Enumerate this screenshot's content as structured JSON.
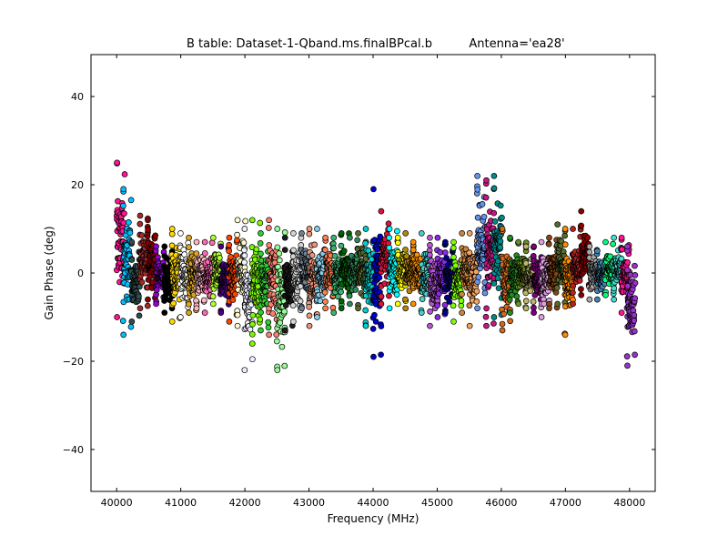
{
  "chart_data": {
    "type": "scatter",
    "title": "B table: Dataset-1-Qband.ms.finalBPcal.b",
    "title_annotation": "Antenna='ea28'",
    "xlabel": "Frequency (MHz)",
    "ylabel": "Gain Phase (deg)",
    "xlim": [
      39600,
      48400
    ],
    "ylim": [
      -49.5,
      49.5
    ],
    "x_ticks": [
      40000,
      41000,
      42000,
      43000,
      44000,
      45000,
      46000,
      47000,
      48000
    ],
    "x_tick_labels": [
      "40000",
      "41000",
      "42000",
      "43000",
      "44000",
      "45000",
      "46000",
      "47000",
      "48000"
    ],
    "y_ticks": [
      -40,
      -20,
      0,
      20,
      40
    ],
    "y_tick_labels": [
      "−40",
      "−20",
      "0",
      "20",
      "40"
    ],
    "grid": false,
    "legend": "none",
    "marker": "circle, black edge",
    "spw_bandwidth_mhz": 128,
    "series": [
      {
        "color": "#ff1493",
        "start": 40000,
        "min": -10,
        "max": 25
      },
      {
        "color": "#00bfff",
        "start": 40100,
        "min": -14,
        "max": 19
      },
      {
        "color": "#2f4f4f",
        "start": 40230,
        "min": -11,
        "max": 7
      },
      {
        "color": "#a52a2a",
        "start": 40360,
        "min": -8,
        "max": 13
      },
      {
        "color": "#8b0000",
        "start": 40480,
        "min": -6,
        "max": 12
      },
      {
        "color": "#9400d3",
        "start": 40610,
        "min": -7,
        "max": 6
      },
      {
        "color": "#000000",
        "start": 40740,
        "min": -9,
        "max": 6
      },
      {
        "color": "#ffd700",
        "start": 40860,
        "min": -11,
        "max": 10
      },
      {
        "color": "#ffffff",
        "start": 40990,
        "min": -10,
        "max": 9
      },
      {
        "color": "#daa520",
        "start": 41120,
        "min": -9,
        "max": 8
      },
      {
        "color": "#ffb6c1",
        "start": 41240,
        "min": -8,
        "max": 7
      },
      {
        "color": "#ff69b4",
        "start": 41370,
        "min": -9,
        "max": 7
      },
      {
        "color": "#adff2f",
        "start": 41500,
        "min": -7,
        "max": 8
      },
      {
        "color": "#4b0082",
        "start": 41620,
        "min": -9,
        "max": 6
      },
      {
        "color": "#ff4500",
        "start": 41750,
        "min": -11,
        "max": 8
      },
      {
        "color": "#fffacd",
        "start": 41880,
        "min": -12,
        "max": 12
      },
      {
        "color": "#eef0ff",
        "start": 41990,
        "min": -22,
        "max": 10
      },
      {
        "color": "#7cfc00",
        "start": 42110,
        "min": -16,
        "max": 12
      },
      {
        "color": "#32cd32",
        "start": 42240,
        "min": -13,
        "max": 9
      },
      {
        "color": "#fa8072",
        "start": 42370,
        "min": -14,
        "max": 12
      },
      {
        "color": "#98fb98",
        "start": 42500,
        "min": -22,
        "max": 10
      },
      {
        "color": "#1c1c1c",
        "start": 42620,
        "min": -13,
        "max": 8
      },
      {
        "color": "#d3d3d3",
        "start": 42750,
        "min": -11,
        "max": 9
      },
      {
        "color": "#708090",
        "start": 42880,
        "min": -8,
        "max": 9
      },
      {
        "color": "#e9967a",
        "start": 43000,
        "min": -12,
        "max": 10
      },
      {
        "color": "#87ceeb",
        "start": 43120,
        "min": -10,
        "max": 10
      },
      {
        "color": "#ff7f50",
        "start": 43250,
        "min": -8,
        "max": 8
      },
      {
        "color": "#3cb371",
        "start": 43380,
        "min": -9,
        "max": 8
      },
      {
        "color": "#006400",
        "start": 43500,
        "min": -8,
        "max": 9
      },
      {
        "color": "#2e8b57",
        "start": 43630,
        "min": -7,
        "max": 8
      },
      {
        "color": "#556b2f",
        "start": 43760,
        "min": -8,
        "max": 9
      },
      {
        "color": "#00ced1",
        "start": 43880,
        "min": -12,
        "max": 10
      },
      {
        "color": "#0000cd",
        "start": 44000,
        "min": -19,
        "max": 19
      },
      {
        "color": "#dc143c",
        "start": 44120,
        "min": -7,
        "max": 14
      },
      {
        "color": "#00ffff",
        "start": 44250,
        "min": -8,
        "max": 10
      },
      {
        "color": "#ffff00",
        "start": 44380,
        "min": -7,
        "max": 8
      },
      {
        "color": "#b8860b",
        "start": 44500,
        "min": -8,
        "max": 9
      },
      {
        "color": "#ff8c00",
        "start": 44620,
        "min": -7,
        "max": 7
      },
      {
        "color": "#48d1cc",
        "start": 44750,
        "min": -9,
        "max": 9
      },
      {
        "color": "#ba55d3",
        "start": 44880,
        "min": -12,
        "max": 8
      },
      {
        "color": "#8a2be2",
        "start": 45000,
        "min": -10,
        "max": 8
      },
      {
        "color": "#00008b",
        "start": 45120,
        "min": -9,
        "max": 7
      },
      {
        "color": "#7fff00",
        "start": 45250,
        "min": -11,
        "max": 7
      },
      {
        "color": "#cd853f",
        "start": 45380,
        "min": -9,
        "max": 9
      },
      {
        "color": "#f4a460",
        "start": 45500,
        "min": -12,
        "max": 9
      },
      {
        "color": "#6495ed",
        "start": 45620,
        "min": -8,
        "max": 22
      },
      {
        "color": "#c71585",
        "start": 45760,
        "min": -12,
        "max": 21
      },
      {
        "color": "#008b8b",
        "start": 45880,
        "min": -10,
        "max": 22
      },
      {
        "color": "#d2691e",
        "start": 46010,
        "min": -13,
        "max": 10
      },
      {
        "color": "#228b22",
        "start": 46130,
        "min": -9,
        "max": 8
      },
      {
        "color": "#6b8e23",
        "start": 46260,
        "min": -7,
        "max": 7
      },
      {
        "color": "#bdb76b",
        "start": 46380,
        "min": -8,
        "max": 6
      },
      {
        "color": "#800080",
        "start": 46500,
        "min": -9,
        "max": 6
      },
      {
        "color": "#dda0dd",
        "start": 46620,
        "min": -10,
        "max": 7
      },
      {
        "color": "#8b4513",
        "start": 46740,
        "min": -8,
        "max": 8
      },
      {
        "color": "#556b2f",
        "start": 46870,
        "min": -7,
        "max": 11
      },
      {
        "color": "#ff8c00",
        "start": 46990,
        "min": -14,
        "max": 10
      },
      {
        "color": "#b22222",
        "start": 47110,
        "min": -7,
        "max": 10
      },
      {
        "color": "#8b0000",
        "start": 47240,
        "min": -5,
        "max": 14
      },
      {
        "color": "#a9a9a9",
        "start": 47370,
        "min": -6,
        "max": 6
      },
      {
        "color": "#4682b4",
        "start": 47490,
        "min": -6,
        "max": 5
      },
      {
        "color": "#00ff7f",
        "start": 47620,
        "min": -5,
        "max": 7
      },
      {
        "color": "#40e0d0",
        "start": 47750,
        "min": -6,
        "max": 8
      },
      {
        "color": "#ff1493",
        "start": 47870,
        "min": -9,
        "max": 8
      },
      {
        "color": "#9932cc",
        "start": 47960,
        "min": -21,
        "max": 6
      }
    ]
  }
}
